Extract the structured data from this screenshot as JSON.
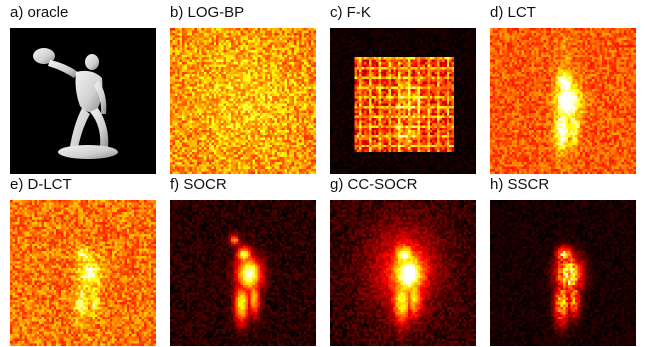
{
  "figure": {
    "panels": [
      {
        "id": "a",
        "label": "a) oracle",
        "kind": "statue"
      },
      {
        "id": "b",
        "label": "b) LOG-BP",
        "kind": "uniform"
      },
      {
        "id": "c",
        "label": "c) F-K",
        "kind": "grid"
      },
      {
        "id": "d",
        "label": "d) LCT",
        "kind": "figure-noisy"
      },
      {
        "id": "e",
        "label": "e) D-LCT",
        "kind": "figure-noisy2"
      },
      {
        "id": "f",
        "label": "f) SOCR",
        "kind": "figure-clean"
      },
      {
        "id": "g",
        "label": "g) CC-SOCR",
        "kind": "figure-glow"
      },
      {
        "id": "h",
        "label": "h) SSCR",
        "kind": "figure-sparse"
      }
    ]
  }
}
